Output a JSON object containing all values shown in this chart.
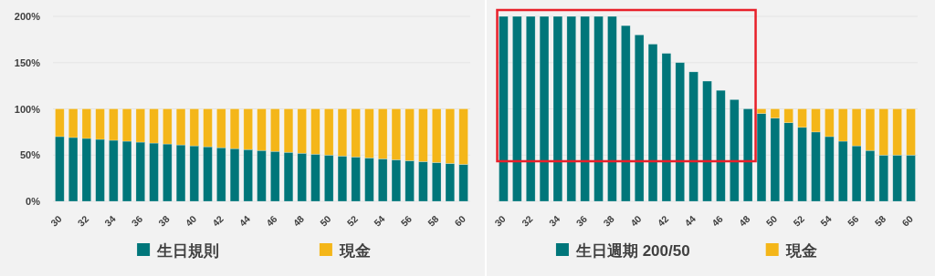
{
  "chart_data": [
    {
      "type": "bar",
      "stacked": true,
      "categories": [
        "30",
        null,
        "32",
        null,
        "34",
        null,
        "36",
        null,
        "38",
        null,
        "40",
        null,
        "42",
        null,
        "44",
        null,
        "46",
        null,
        "48",
        null,
        "50",
        null,
        "52",
        null,
        "54",
        null,
        "56",
        null,
        "58",
        null,
        "60"
      ],
      "series": [
        {
          "name": "生日規則",
          "color": "#00767a",
          "values": [
            70,
            69,
            68,
            67,
            66,
            65,
            64,
            63,
            62,
            61,
            60,
            59,
            58,
            57,
            56,
            55,
            54,
            53,
            52,
            51,
            50,
            49,
            48,
            47,
            46,
            45,
            44,
            43,
            42,
            41,
            40
          ]
        },
        {
          "name": "現金",
          "color": "#f4b619",
          "values": [
            30,
            31,
            32,
            33,
            34,
            35,
            36,
            37,
            38,
            39,
            40,
            41,
            42,
            43,
            44,
            45,
            46,
            47,
            48,
            49,
            50,
            51,
            52,
            53,
            54,
            55,
            56,
            57,
            58,
            59,
            60
          ]
        }
      ],
      "ylim": [
        0,
        200
      ],
      "yticks": [
        {
          "value": 0,
          "label": "0%"
        },
        {
          "value": 50,
          "label": "50%"
        },
        {
          "value": 100,
          "label": "100%"
        },
        {
          "value": 150,
          "label": "150%"
        },
        {
          "value": 200,
          "label": "200%"
        }
      ],
      "grid": "y",
      "legend": "bottom"
    },
    {
      "type": "bar",
      "stacked": true,
      "categories": [
        "30",
        null,
        "32",
        null,
        "34",
        null,
        "36",
        null,
        "38",
        null,
        "40",
        null,
        "42",
        null,
        "44",
        null,
        "46",
        null,
        "48",
        null,
        "50",
        null,
        "52",
        null,
        "54",
        null,
        "56",
        null,
        "58",
        null,
        "60"
      ],
      "series": [
        {
          "name": "生日週期 200/50",
          "color": "#00767a",
          "values": [
            200,
            200,
            200,
            200,
            200,
            200,
            200,
            200,
            200,
            190,
            180,
            170,
            160,
            150,
            140,
            130,
            120,
            110,
            100,
            95,
            90,
            85,
            80,
            75,
            70,
            65,
            60,
            55,
            50,
            50,
            50
          ]
        },
        {
          "name": "現金",
          "color": "#f4b619",
          "values": [
            0,
            0,
            0,
            0,
            0,
            0,
            0,
            0,
            0,
            0,
            0,
            0,
            0,
            0,
            0,
            0,
            0,
            0,
            0,
            5,
            10,
            15,
            20,
            25,
            30,
            35,
            40,
            45,
            50,
            50,
            50
          ]
        }
      ],
      "ylim": [
        0,
        200
      ],
      "yticks": [
        {
          "value": 0,
          "label": null
        },
        {
          "value": 50,
          "label": null
        },
        {
          "value": 100,
          "label": null
        },
        {
          "value": 150,
          "label": null
        },
        {
          "value": 200,
          "label": null
        }
      ],
      "grid": "y",
      "legend": "bottom",
      "tick_labels": "x"
    }
  ]
}
